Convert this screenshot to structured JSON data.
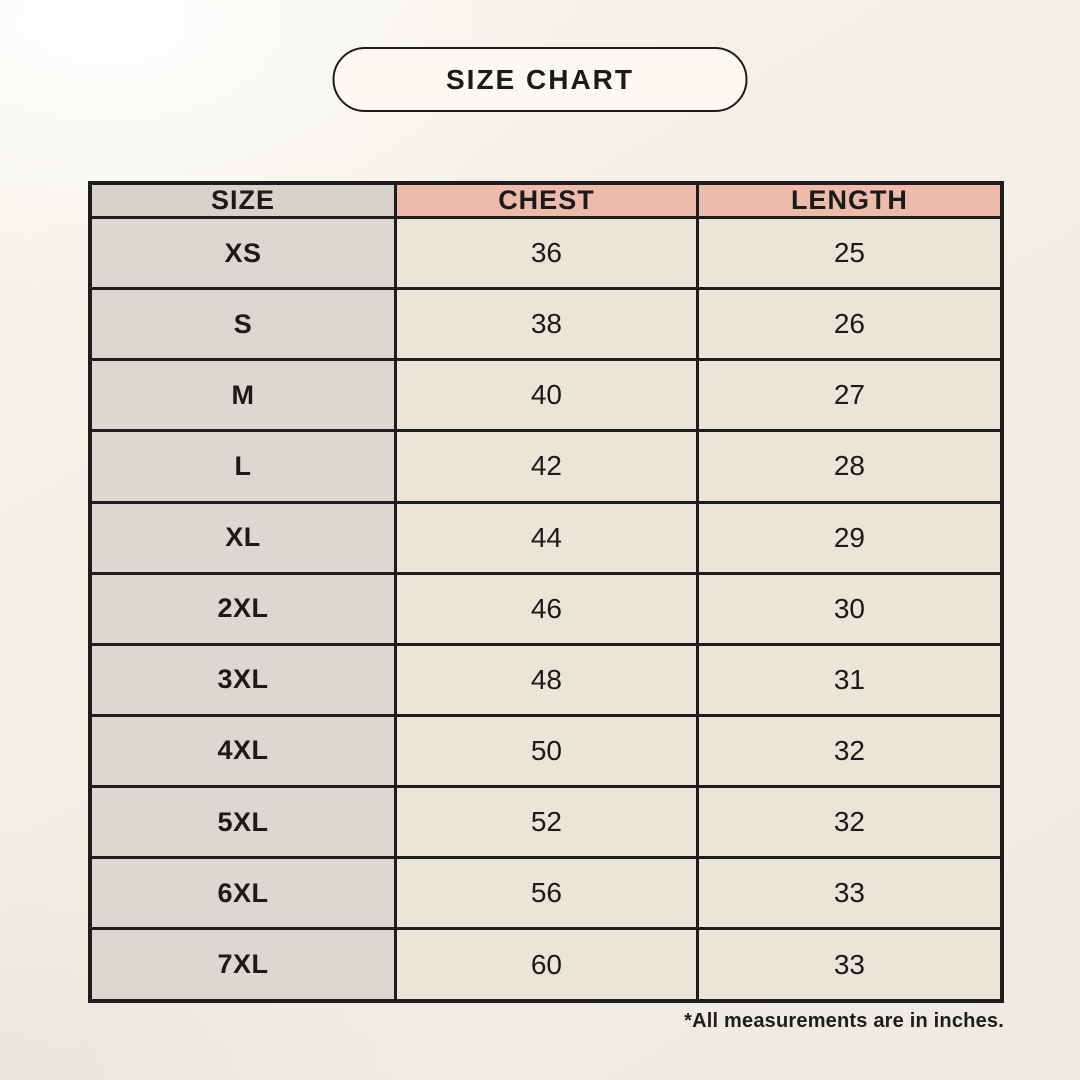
{
  "page": {
    "title_badge": "SIZE CHART",
    "footnote": "*All measurements are in inches."
  },
  "table": {
    "headers": [
      "SIZE",
      "CHEST",
      "LENGTH"
    ],
    "rows": [
      {
        "size": "XS",
        "chest": "36",
        "length": "25"
      },
      {
        "size": "S",
        "chest": "38",
        "length": "26"
      },
      {
        "size": "M",
        "chest": "40",
        "length": "27"
      },
      {
        "size": "L",
        "chest": "42",
        "length": "28"
      },
      {
        "size": "XL",
        "chest": "44",
        "length": "29"
      },
      {
        "size": "2XL",
        "chest": "46",
        "length": "30"
      },
      {
        "size": "3XL",
        "chest": "48",
        "length": "31"
      },
      {
        "size": "4XL",
        "chest": "50",
        "length": "32"
      },
      {
        "size": "5XL",
        "chest": "52",
        "length": "32"
      },
      {
        "size": "6XL",
        "chest": "56",
        "length": "33"
      },
      {
        "size": "7XL",
        "chest": "60",
        "length": "33"
      }
    ]
  },
  "colors": {
    "background": "#f3efe5",
    "badge_fill": "#fbf9f2",
    "header_pink": "#eebbab",
    "size_column_gray": "#ddd7d2",
    "cell_cream": "#ebe4d8",
    "border": "#1d1d1d",
    "text": "#1a1a1a"
  },
  "chart_data": {
    "type": "table",
    "title": "SIZE CHART",
    "columns": [
      "SIZE",
      "CHEST",
      "LENGTH"
    ],
    "rows": [
      [
        "XS",
        36,
        25
      ],
      [
        "S",
        38,
        26
      ],
      [
        "M",
        40,
        27
      ],
      [
        "L",
        42,
        28
      ],
      [
        "XL",
        44,
        29
      ],
      [
        "2XL",
        46,
        30
      ],
      [
        "3XL",
        48,
        31
      ],
      [
        "4XL",
        50,
        32
      ],
      [
        "5XL",
        52,
        32
      ],
      [
        "6XL",
        56,
        33
      ],
      [
        "7XL",
        60,
        33
      ]
    ],
    "units": "inches",
    "annotations": [
      "*All measurements are in inches."
    ]
  }
}
